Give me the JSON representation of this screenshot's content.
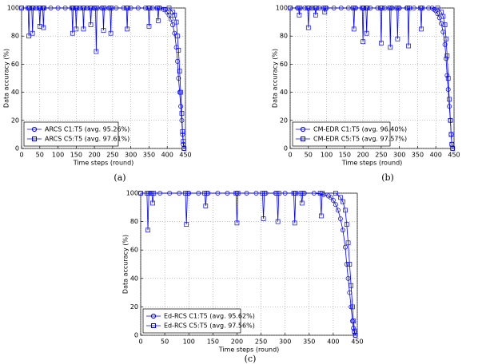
{
  "chart_data": [
    {
      "type": "line",
      "caption": "(a)",
      "xlabel": "Time steps (round)",
      "ylabel": "Data accuracy (%)",
      "xlim": [
        0,
        450
      ],
      "ylim": [
        0,
        100
      ],
      "xticks": [
        0,
        50,
        100,
        150,
        200,
        250,
        300,
        350,
        400,
        450
      ],
      "yticks": [
        0,
        20,
        40,
        60,
        80,
        100
      ],
      "grid": true,
      "legend": "lower left",
      "series": [
        {
          "name": "ARCS C1:T5 (avg. 95.26%)",
          "color": "#0000ff",
          "marker": "circle",
          "x": [
            0,
            20,
            40,
            60,
            80,
            100,
            120,
            140,
            160,
            180,
            200,
            220,
            240,
            260,
            280,
            300,
            320,
            340,
            360,
            380,
            390,
            395,
            400,
            405,
            410,
            415,
            420,
            425,
            428,
            431,
            434,
            437,
            440,
            442,
            444,
            446
          ],
          "values": [
            100,
            100,
            100,
            100,
            100,
            100,
            100,
            100,
            100,
            100,
            100,
            100,
            100,
            100,
            100,
            100,
            100,
            100,
            100,
            100,
            99,
            99,
            97,
            95,
            92,
            88,
            82,
            72,
            62,
            50,
            40,
            30,
            20,
            10,
            3,
            0
          ]
        },
        {
          "name": "ARCS C5:T5 (avg. 97.61%)",
          "color": "#0000ff",
          "marker": "square",
          "x": [
            0,
            18,
            20,
            22,
            28,
            30,
            32,
            48,
            50,
            52,
            58,
            60,
            62,
            138,
            140,
            142,
            148,
            150,
            152,
            168,
            170,
            172,
            188,
            190,
            192,
            203,
            205,
            207,
            223,
            225,
            227,
            243,
            245,
            247,
            288,
            290,
            292,
            348,
            350,
            352,
            373,
            375,
            377,
            405,
            415,
            420,
            425,
            428,
            431,
            434,
            437,
            440,
            442,
            444,
            446
          ],
          "values": [
            100,
            100,
            80,
            100,
            100,
            82,
            100,
            100,
            87,
            100,
            100,
            86,
            100,
            100,
            82,
            100,
            100,
            85,
            100,
            100,
            85,
            100,
            100,
            88,
            100,
            100,
            69,
            100,
            100,
            84,
            100,
            100,
            82,
            100,
            100,
            85,
            100,
            100,
            87,
            100,
            100,
            91,
            100,
            100,
            97,
            95,
            90,
            80,
            70,
            55,
            40,
            25,
            12,
            5,
            0
          ]
        }
      ]
    },
    {
      "type": "line",
      "caption": "(b)",
      "xlabel": "Time steps (round)",
      "ylabel": "Data accuracy (%)",
      "xlim": [
        0,
        450
      ],
      "ylim": [
        0,
        100
      ],
      "xticks": [
        0,
        50,
        100,
        150,
        200,
        250,
        300,
        350,
        400,
        450
      ],
      "yticks": [
        0,
        20,
        40,
        60,
        80,
        100
      ],
      "grid": true,
      "legend": "lower left",
      "series": [
        {
          "name": "CM-EDR C1:T5 (avg. 96.40%)",
          "color": "#0000ff",
          "marker": "circle",
          "x": [
            0,
            20,
            40,
            60,
            80,
            100,
            120,
            140,
            160,
            180,
            200,
            220,
            240,
            260,
            280,
            300,
            320,
            340,
            360,
            380,
            390,
            395,
            400,
            405,
            410,
            415,
            420,
            425,
            428,
            431,
            434,
            437,
            440,
            442,
            444,
            446
          ],
          "values": [
            100,
            100,
            100,
            100,
            100,
            100,
            100,
            100,
            100,
            100,
            100,
            100,
            100,
            100,
            100,
            100,
            100,
            100,
            100,
            100,
            100,
            99,
            98,
            96,
            93,
            89,
            83,
            74,
            64,
            52,
            42,
            30,
            20,
            10,
            3,
            0
          ]
        },
        {
          "name": "CM-EDR C5:T5 (avg. 97.57%)",
          "color": "#0000ff",
          "marker": "square",
          "x": [
            0,
            23,
            25,
            27,
            48,
            50,
            52,
            68,
            70,
            72,
            93,
            95,
            97,
            173,
            175,
            177,
            198,
            200,
            202,
            208,
            210,
            212,
            248,
            250,
            252,
            273,
            275,
            277,
            293,
            295,
            297,
            323,
            325,
            327,
            358,
            360,
            362,
            405,
            415,
            420,
            425,
            428,
            431,
            434,
            437,
            440,
            442,
            444,
            446
          ],
          "values": [
            100,
            100,
            95,
            100,
            100,
            86,
            100,
            100,
            95,
            100,
            100,
            97,
            100,
            100,
            85,
            100,
            100,
            76,
            100,
            100,
            82,
            100,
            100,
            75,
            100,
            100,
            72,
            100,
            100,
            78,
            100,
            100,
            73,
            100,
            100,
            85,
            100,
            100,
            97,
            94,
            88,
            78,
            66,
            50,
            35,
            20,
            10,
            3,
            0
          ]
        }
      ]
    },
    {
      "type": "line",
      "caption": "(c)",
      "xlabel": "Time steps (round)",
      "ylabel": "Data accuracy (%)",
      "xlim": [
        0,
        450
      ],
      "ylim": [
        0,
        100
      ],
      "xticks": [
        0,
        50,
        100,
        150,
        200,
        250,
        300,
        350,
        400,
        450
      ],
      "yticks": [
        0,
        20,
        40,
        60,
        80,
        100
      ],
      "grid": true,
      "legend": "lower left",
      "series": [
        {
          "name": "Ed-RCS C1:T5 (avg. 95.62%)",
          "color": "#0000ff",
          "marker": "circle",
          "x": [
            0,
            20,
            40,
            60,
            80,
            100,
            120,
            140,
            160,
            180,
            200,
            220,
            240,
            260,
            280,
            300,
            320,
            340,
            360,
            380,
            390,
            395,
            400,
            405,
            410,
            415,
            420,
            425,
            428,
            431,
            434,
            437,
            440,
            442,
            444,
            446
          ],
          "values": [
            100,
            100,
            100,
            100,
            100,
            100,
            100,
            100,
            100,
            100,
            100,
            100,
            100,
            100,
            100,
            100,
            100,
            100,
            100,
            99,
            98,
            97,
            95,
            92,
            88,
            82,
            74,
            62,
            50,
            40,
            30,
            20,
            10,
            5,
            2,
            0
          ]
        },
        {
          "name": "Ed-RCS C5:T5 (avg. 97.56%)",
          "color": "#0000ff",
          "marker": "square",
          "x": [
            0,
            13,
            15,
            17,
            23,
            25,
            27,
            93,
            95,
            97,
            133,
            135,
            137,
            198,
            200,
            202,
            253,
            255,
            257,
            283,
            285,
            287,
            318,
            320,
            322,
            333,
            335,
            337,
            373,
            375,
            377,
            405,
            415,
            420,
            425,
            428,
            431,
            434,
            437,
            440,
            442,
            444,
            446
          ],
          "values": [
            100,
            100,
            74,
            100,
            100,
            93,
            100,
            100,
            78,
            100,
            100,
            91,
            100,
            100,
            79,
            100,
            100,
            82,
            100,
            100,
            80,
            100,
            100,
            79,
            100,
            100,
            93,
            100,
            100,
            84,
            100,
            100,
            97,
            94,
            88,
            78,
            65,
            50,
            35,
            20,
            10,
            3,
            0
          ]
        }
      ]
    }
  ]
}
